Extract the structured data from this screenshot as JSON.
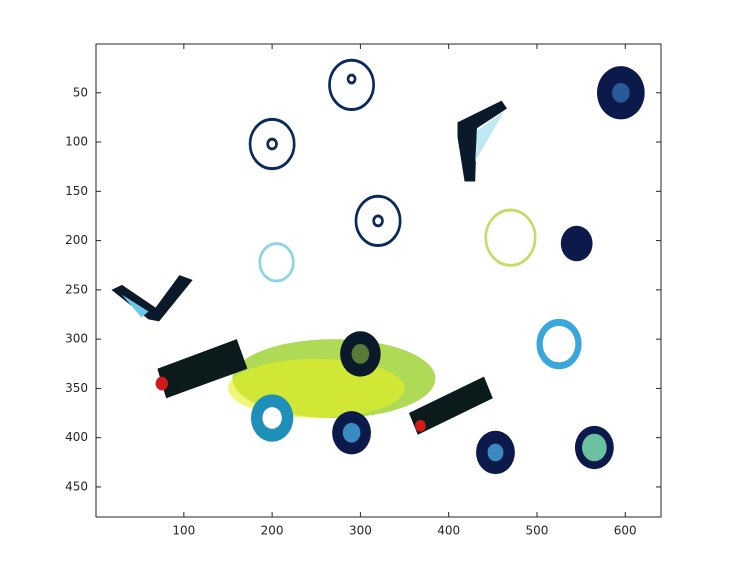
{
  "chart_data": {
    "type": "image",
    "xlim": [
      0.5,
      640.5
    ],
    "ylim": [
      0.5,
      480.5
    ],
    "y_reversed": true,
    "xticks": [
      100,
      200,
      300,
      400,
      500,
      600
    ],
    "yticks": [
      50,
      100,
      150,
      200,
      250,
      300,
      350,
      400,
      450
    ]
  }
}
